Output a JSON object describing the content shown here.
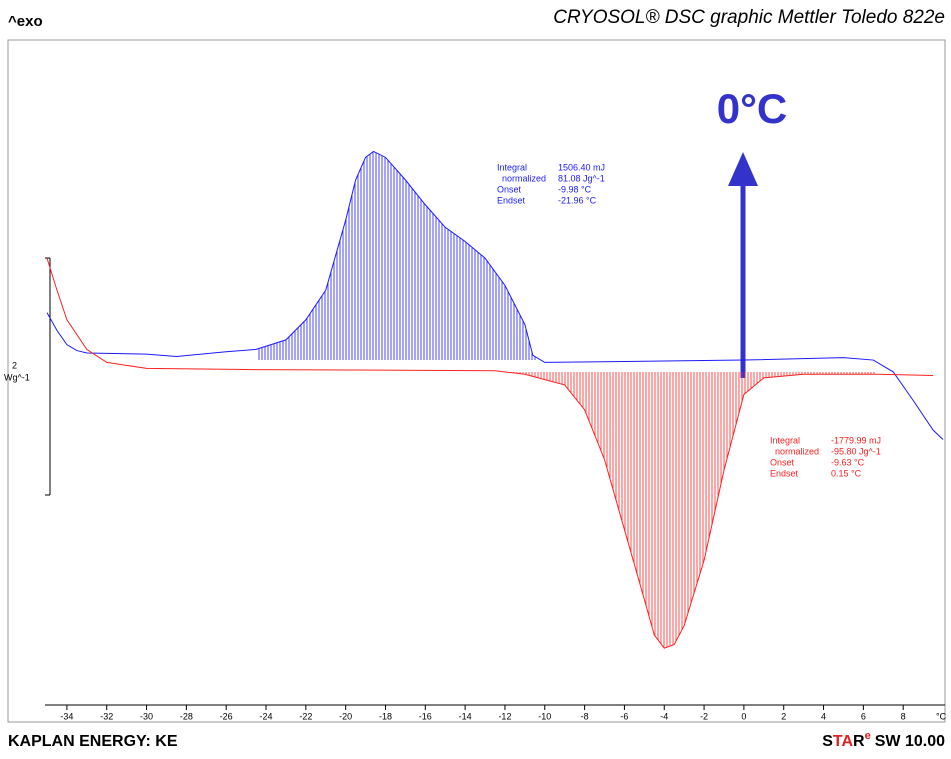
{
  "chart_data": {
    "type": "line",
    "title": "CRYOSOL® DSC graphic Mettler Toledo 822e",
    "corner_label": "^exo",
    "footer_left": "KAPLAN ENERGY: KE",
    "footer_right": [
      "S",
      "TA",
      "R",
      "e",
      "SW 10.00"
    ],
    "x_unit": "°C",
    "scale_bar": {
      "value": "2",
      "unit": "Wg^-1"
    },
    "marker_label": "0°C",
    "xlim": [
      -35.1,
      10.1
    ],
    "xticks": [
      -34,
      -32,
      -30,
      -28,
      -26,
      -24,
      -22,
      -20,
      -18,
      -16,
      -14,
      -12,
      -10,
      -8,
      -6,
      -4,
      -2,
      0,
      2,
      4,
      6,
      8
    ],
    "ylim": [
      -2.81,
      2.8
    ],
    "series": [
      {
        "color": "#1a1aff",
        "x": [
          -35,
          -34.5,
          -34,
          -33.5,
          -33,
          -30,
          -28.5,
          -26,
          -24.5,
          -23,
          -22,
          -21,
          -20,
          -19.5,
          -19,
          -18.6,
          -18,
          -17,
          -16,
          -15,
          -14,
          -13,
          -12,
          -11,
          -10.6,
          -10,
          -5,
          0,
          5,
          6.5,
          7.5,
          8.5,
          9.5,
          10
        ],
        "values": [
          0.5,
          0.35,
          0.23,
          0.18,
          0.16,
          0.15,
          0.13,
          0.17,
          0.19,
          0.27,
          0.44,
          0.69,
          1.28,
          1.62,
          1.81,
          1.86,
          1.81,
          1.62,
          1.41,
          1.22,
          1.1,
          0.96,
          0.73,
          0.4,
          0.14,
          0.08,
          0.09,
          0.1,
          0.12,
          0.1,
          0,
          -0.24,
          -0.49,
          -0.57
        ],
        "annotation": [
          [
            "Integral",
            "1506.40 mJ"
          ],
          [
            "  normalized",
            "81.08 Jg^-1"
          ],
          [
            "Onset",
            "-9.98 °C"
          ],
          [
            "Endset",
            "-21.96 °C"
          ]
        ]
      },
      {
        "color": "#ff2020",
        "x": [
          -35,
          -34.5,
          -34,
          -33,
          -32,
          -30,
          -25,
          -12.5,
          -11,
          -9,
          -8,
          -7,
          -6,
          -5,
          -4.5,
          -4,
          -3.5,
          -3,
          -2,
          -1,
          0,
          1,
          3,
          6.7,
          9.5
        ],
        "values": [
          0.96,
          0.69,
          0.44,
          0.19,
          0.08,
          0.03,
          0.02,
          0.01,
          -0.02,
          -0.11,
          -0.32,
          -0.74,
          -1.33,
          -1.92,
          -2.22,
          -2.33,
          -2.3,
          -2.14,
          -1.59,
          -0.83,
          -0.19,
          -0.05,
          -0.02,
          -0.02,
          -0.03
        ],
        "annotation": [
          [
            "Integral",
            "-1779.99 mJ"
          ],
          [
            "  normalized",
            "-95.80 Jg^-1"
          ],
          [
            "Onset",
            "-9.63 °C"
          ],
          [
            "Endset",
            "0.15 °C"
          ]
        ]
      }
    ]
  }
}
